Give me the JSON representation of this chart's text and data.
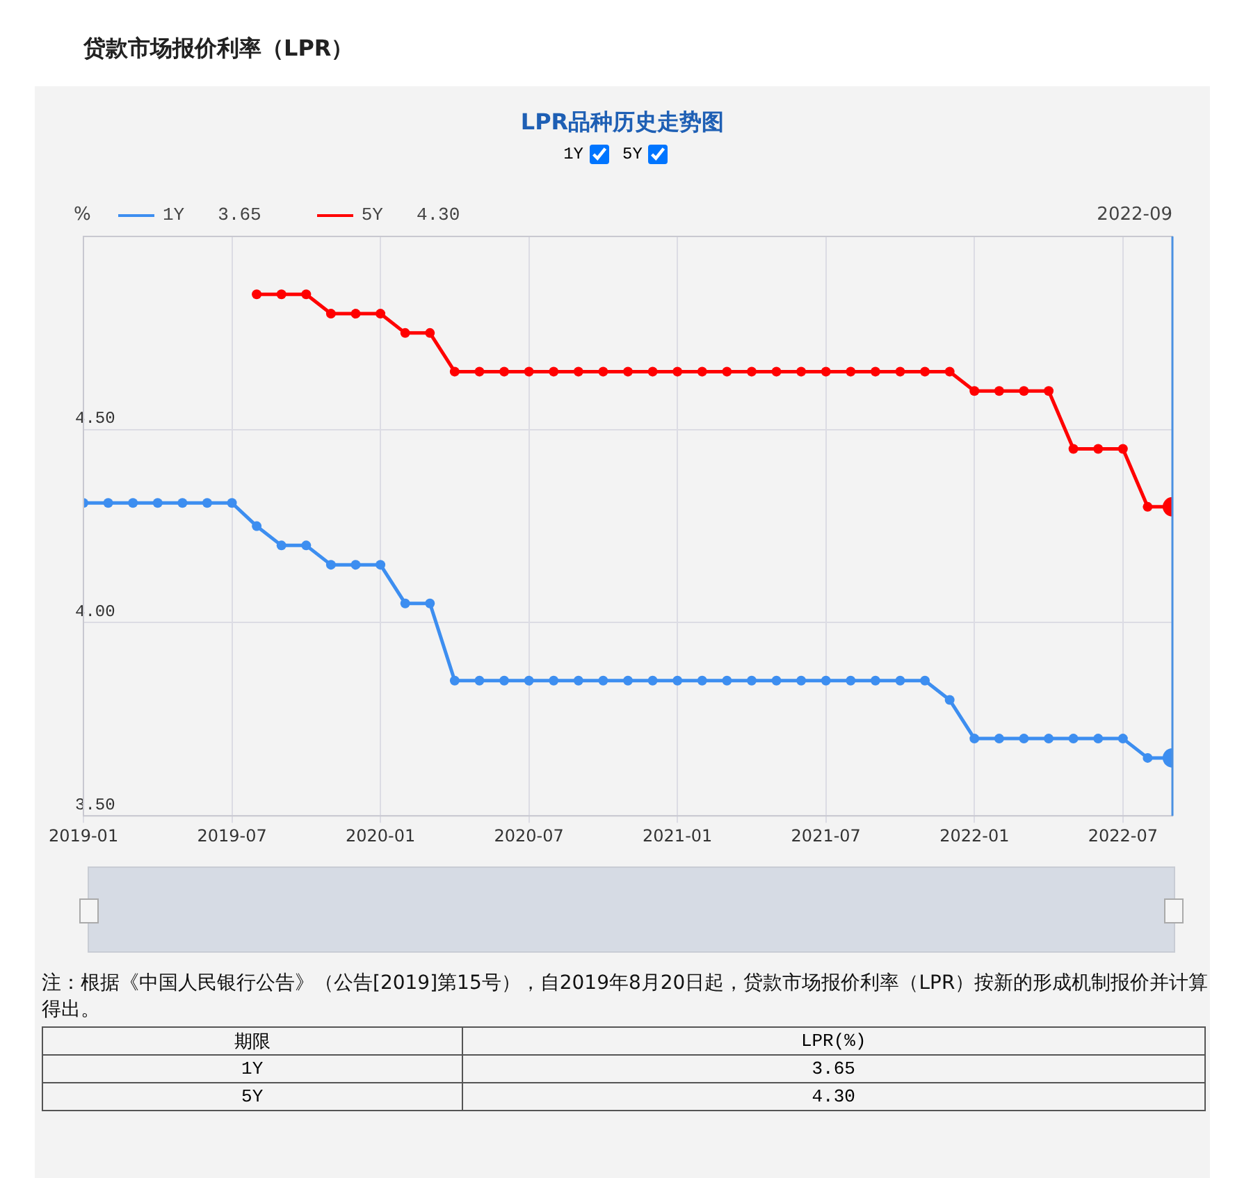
{
  "chart_data": {
    "type": "line",
    "title": "贷款市场报价利率（LPR）",
    "subtitle": "LPR品种历史走势图",
    "ylabel": "%",
    "x": [
      "2019-01",
      "2019-02",
      "2019-03",
      "2019-04",
      "2019-05",
      "2019-06",
      "2019-07",
      "2019-08",
      "2019-09",
      "2019-10",
      "2019-11",
      "2019-12",
      "2020-01",
      "2020-02",
      "2020-03",
      "2020-04",
      "2020-05",
      "2020-06",
      "2020-07",
      "2020-08",
      "2020-09",
      "2020-10",
      "2020-11",
      "2020-12",
      "2021-01",
      "2021-02",
      "2021-03",
      "2021-04",
      "2021-05",
      "2021-06",
      "2021-07",
      "2021-08",
      "2021-09",
      "2021-10",
      "2021-11",
      "2021-12",
      "2022-01",
      "2022-02",
      "2022-03",
      "2022-04",
      "2022-05",
      "2022-06",
      "2022-07",
      "2022-08",
      "2022-09"
    ],
    "series": [
      {
        "name": "1Y",
        "color": "#3d8ef0",
        "values": [
          4.31,
          4.31,
          4.31,
          4.31,
          4.31,
          4.31,
          4.31,
          4.25,
          4.2,
          4.2,
          4.15,
          4.15,
          4.15,
          4.05,
          4.05,
          3.85,
          3.85,
          3.85,
          3.85,
          3.85,
          3.85,
          3.85,
          3.85,
          3.85,
          3.85,
          3.85,
          3.85,
          3.85,
          3.85,
          3.85,
          3.85,
          3.85,
          3.85,
          3.85,
          3.85,
          3.8,
          3.7,
          3.7,
          3.7,
          3.7,
          3.7,
          3.7,
          3.7,
          3.65,
          3.65
        ]
      },
      {
        "name": "5Y",
        "color": "#ff0000",
        "values": [
          null,
          null,
          null,
          null,
          null,
          null,
          null,
          4.85,
          4.85,
          4.85,
          4.8,
          4.8,
          4.8,
          4.75,
          4.75,
          4.65,
          4.65,
          4.65,
          4.65,
          4.65,
          4.65,
          4.65,
          4.65,
          4.65,
          4.65,
          4.65,
          4.65,
          4.65,
          4.65,
          4.65,
          4.65,
          4.65,
          4.65,
          4.65,
          4.65,
          4.65,
          4.6,
          4.6,
          4.6,
          4.6,
          4.45,
          4.45,
          4.45,
          4.3,
          4.3
        ]
      }
    ],
    "xlim": [
      "2019-01",
      "2022-09"
    ],
    "xticks": [
      "2019-01",
      "2019-07",
      "2020-01",
      "2020-07",
      "2021-01",
      "2021-07",
      "2022-01",
      "2022-07"
    ],
    "ylim": [
      3.5,
      5.0
    ],
    "yticks": [
      {
        "value": 3.5,
        "label": "3.50"
      },
      {
        "value": 4,
        "label": "4.00"
      },
      {
        "value": 4.5,
        "label": "4.50"
      }
    ],
    "ref_lines": [
      {
        "axis": "x",
        "value": "2022-09",
        "label": "2022-09",
        "color": "#4a90e2"
      }
    ],
    "grid": true,
    "legend": "top left",
    "marker": "circle",
    "line_style": "solid",
    "annotations": [
      "注：根据《中国人民银行公告》（公告[2019]第15号），自2019年8月20日起，贷款市场报价利率（LPR）按新的形成机制报价并计算得出。",
      "期限",
      "LPR(%)",
      "3.65",
      "4.30",
      "3.65",
      "4.30"
    ]
  }
}
